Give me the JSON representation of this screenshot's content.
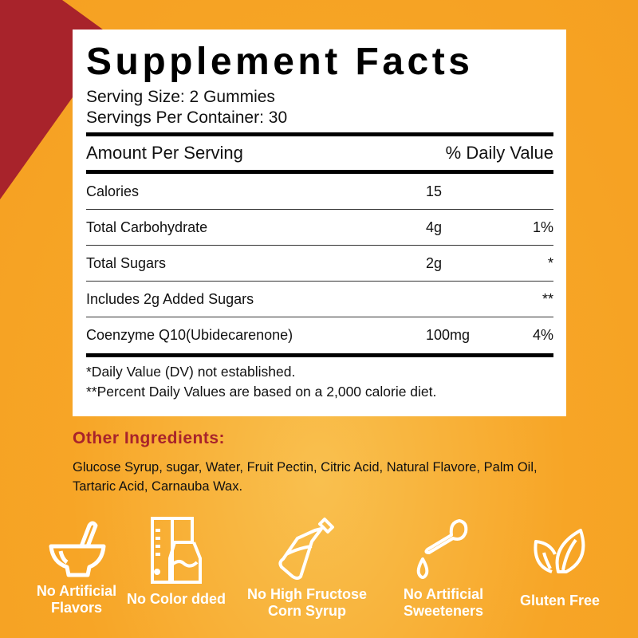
{
  "colors": {
    "background": "#f7a526",
    "accent_red": "#a8232b",
    "panel": "#ffffff"
  },
  "facts": {
    "title": "Supplement Facts",
    "serving_size": "Serving Size: 2 Gummies",
    "servings_per_container": "Servings Per Container: 30",
    "amount_header": "Amount Per Serving",
    "dv_header": "% Daily Value",
    "rows": [
      {
        "name": "Calories",
        "amount": "15",
        "dv": ""
      },
      {
        "name": "Total Carbohydrate",
        "amount": "4g",
        "dv": "1%"
      },
      {
        "name": "Total Sugars",
        "amount": "2g",
        "dv": "*"
      },
      {
        "name": "Includes 2g Added Sugars",
        "amount": "",
        "dv": "**"
      },
      {
        "name": "Coenzyme Q10(Ubidecarenone)",
        "amount": "100mg",
        "dv": "4%"
      }
    ],
    "footnote1": "*Daily Value (DV) not established.",
    "footnote2": "**Percent Daily Values are based on a 2,000 calorie diet."
  },
  "other_ingredients": {
    "heading": "Other Ingredients:",
    "text": "Glucose Syrup, sugar, Water, Fruit Pectin, Citric Acid, Natural Flavore, Palm Oil, Tartaric Acid, Carnauba Wax."
  },
  "badges": [
    {
      "icon": "mortar-pestle-icon",
      "label": "No Artificial Flavors"
    },
    {
      "icon": "blender-icon",
      "label": "No Color dded"
    },
    {
      "icon": "syrup-bottle-icon",
      "label": "No High Fructose Corn Syrup"
    },
    {
      "icon": "dropper-icon",
      "label": "No Artificial Sweeteners"
    },
    {
      "icon": "leaf-icon",
      "label": "Gluten Free"
    }
  ]
}
